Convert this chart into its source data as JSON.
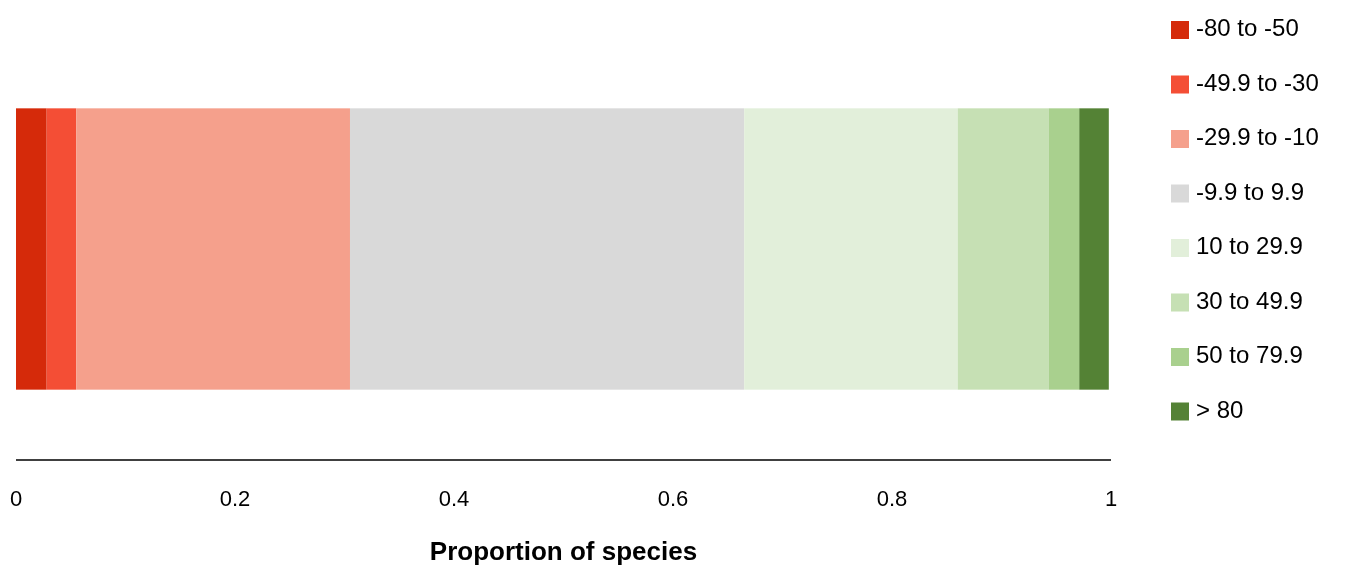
{
  "chart_data": {
    "type": "bar",
    "orientation": "horizontal",
    "stacked": true,
    "xlabel": "Proportion of species",
    "categories": [
      null
    ],
    "xlim": [
      0,
      1
    ],
    "xticks": [
      0,
      0.2,
      0.4,
      0.6,
      0.8,
      1
    ],
    "tick_labels": "x",
    "legend": "right",
    "grid": false,
    "series": [
      {
        "name": "-80 to -50",
        "color": "#d52a0a",
        "values": [
          0.028
        ]
      },
      {
        "name": "-49.9 to -30",
        "color": "#f44e35",
        "values": [
          0.027
        ]
      },
      {
        "name": "-29.9 to -10",
        "color": "#f5a08c",
        "values": [
          0.25
        ]
      },
      {
        "name": "-9.9 to 9.9",
        "color": "#d9d9d9",
        "values": [
          0.36
        ]
      },
      {
        "name": "10 to 29.9",
        "color": "#e2efda",
        "values": [
          0.195
        ]
      },
      {
        "name": "30 to 49.9",
        "color": "#c6e0b4",
        "values": [
          0.083
        ]
      },
      {
        "name": "50 to 79.9",
        "color": "#a9d08e",
        "values": [
          0.028
        ]
      },
      {
        "name": "> 80",
        "color": "#548235",
        "values": [
          0.027
        ]
      }
    ]
  }
}
